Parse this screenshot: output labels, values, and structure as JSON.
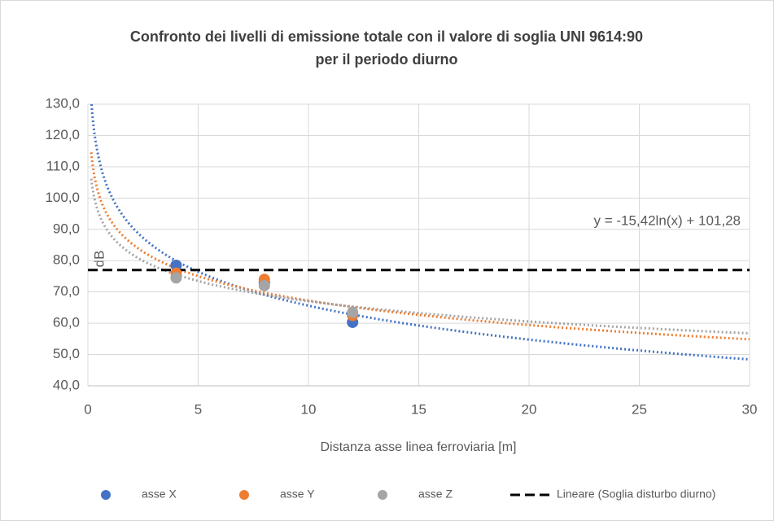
{
  "chart_data": {
    "type": "scatter",
    "title": [
      "Confronto dei livelli di emissione totale con il valore di soglia UNI 9614:90",
      "per il periodo diurno"
    ],
    "x_label": "Distanza asse linea ferroviaria [m]",
    "y_label": "dB",
    "annotation": "y = -15,42ln(x) + 101,28",
    "xlim": [
      0,
      30
    ],
    "xticks": [
      0,
      5,
      10,
      15,
      20,
      25,
      30
    ],
    "ylim": [
      40,
      130
    ],
    "yticks": [
      {
        "value": 40,
        "label": "40,0"
      },
      {
        "value": 50,
        "label": "50,0"
      },
      {
        "value": 60,
        "label": "60,0"
      },
      {
        "value": 70,
        "label": "70,0"
      },
      {
        "value": 80,
        "label": "80,0"
      },
      {
        "value": 90,
        "label": "90,0"
      },
      {
        "value": 100,
        "label": "100,0"
      },
      {
        "value": 110,
        "label": "110,0"
      },
      {
        "value": 120,
        "label": "120,0"
      },
      {
        "value": 130,
        "label": "130,0"
      }
    ],
    "grid": true,
    "legend": "bottom",
    "trendline": "log",
    "series": [
      {
        "name": "asse X",
        "color": "#4472c4",
        "x": [
          4,
          8,
          12
        ],
        "values": [
          78.5,
          73,
          60.3
        ]
      },
      {
        "name": "asse Y",
        "color": "#ed7d31",
        "x": [
          4,
          8,
          12
        ],
        "values": [
          76,
          74,
          62.5
        ]
      },
      {
        "name": "asse Z",
        "color": "#a5a5a5",
        "x": [
          4,
          8,
          12
        ],
        "values": [
          74.5,
          72,
          63.5
        ]
      }
    ],
    "threshold": {
      "name": "Lineare (Soglia disturbo diurno)",
      "value": 77,
      "color": "#000000"
    }
  }
}
